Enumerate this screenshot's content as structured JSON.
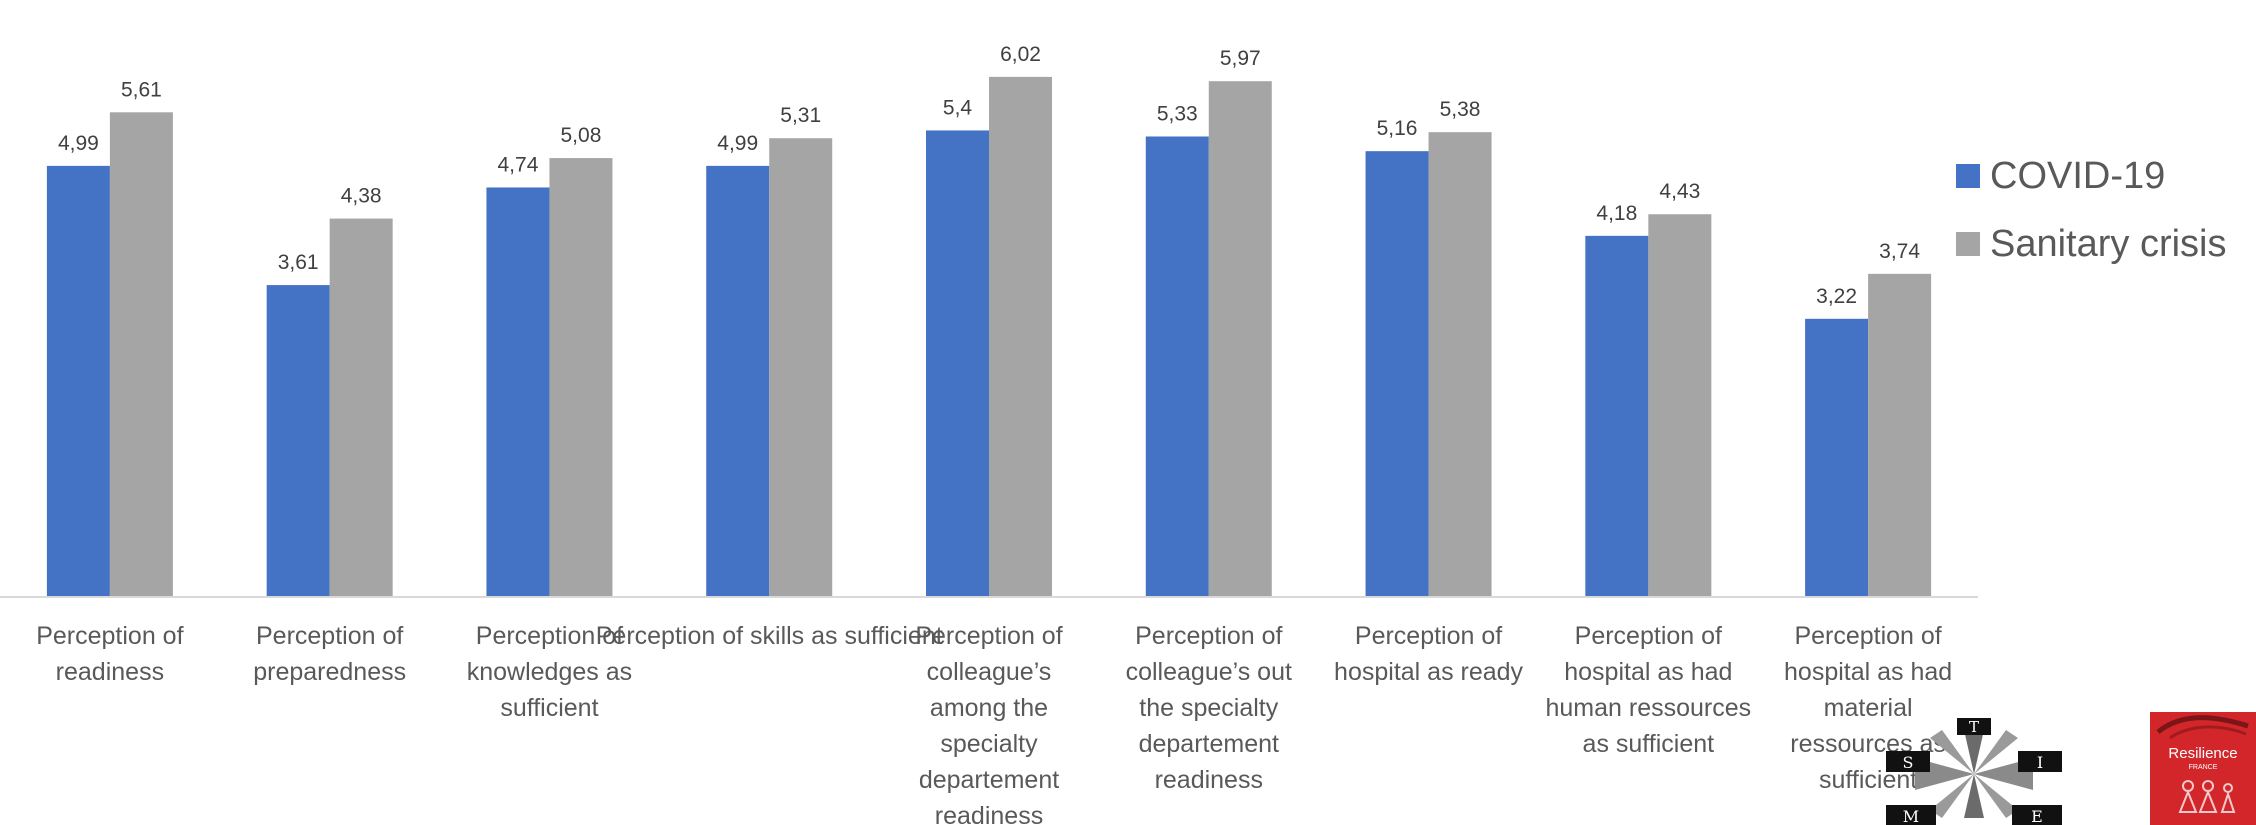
{
  "chart_data": {
    "type": "bar",
    "title": "",
    "xlabel": "",
    "ylabel": "",
    "ylim": [
      0,
      6.5
    ],
    "grid": false,
    "legend_position": "right",
    "categories": [
      [
        "Perception of",
        "readiness"
      ],
      [
        "Perception of",
        "preparedness"
      ],
      [
        "Perception of",
        "knowledges as",
        "sufficient"
      ],
      [
        "Perception of skills as sufficient"
      ],
      [
        "Perception of",
        "colleague’s",
        "among the",
        "specialty",
        "departement",
        "readiness"
      ],
      [
        "Perception of",
        "colleague’s out",
        "the specialty",
        "departement",
        "readiness"
      ],
      [
        "Perception of",
        "hospital as ready"
      ],
      [
        "Perception of",
        "hospital as had",
        "human ressources",
        "as sufficient"
      ],
      [
        "Perception of",
        "hospital as had",
        "material",
        "ressources as",
        "sufficient"
      ]
    ],
    "series": [
      {
        "name": "COVID-19",
        "color": "#4472c4",
        "values": [
          4.99,
          3.61,
          4.74,
          4.99,
          5.4,
          5.33,
          5.16,
          4.18,
          3.22
        ],
        "labels": [
          "4,99",
          "3,61",
          "4,74",
          "4,99",
          "5,4",
          "5,33",
          "5,16",
          "4,18",
          "3,22"
        ]
      },
      {
        "name": "Sanitary crisis",
        "color": "#a5a5a5",
        "values": [
          5.61,
          4.38,
          5.08,
          5.31,
          6.02,
          5.97,
          5.38,
          4.43,
          3.74
        ],
        "labels": [
          "5,61",
          "4,38",
          "5,08",
          "5,31",
          "6,02",
          "5,97",
          "5,38",
          "4,43",
          "3,74"
        ]
      }
    ]
  },
  "legend": {
    "items": [
      {
        "label": "COVID-19",
        "color": "#4472c4"
      },
      {
        "label": "Sanitary crisis",
        "color": "#a5a5a5"
      }
    ]
  },
  "logos": {
    "stime": {
      "letters": [
        "T",
        "S",
        "I",
        "M",
        "E"
      ]
    },
    "resilience": {
      "text": "Resilience",
      "subtext": "FRANCE"
    }
  }
}
